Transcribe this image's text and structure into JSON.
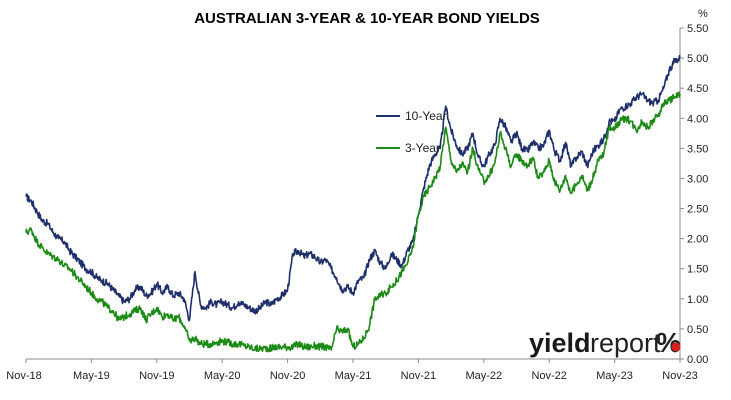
{
  "chart_data": {
    "type": "line",
    "title": "AUSTRALIAN 3-YEAR & 10-YEAR BOND YIELDS",
    "y_unit": "%",
    "xlabel": "",
    "ylabel": "",
    "ylim": [
      0,
      5.5
    ],
    "y_ticks": [
      "0.00",
      "0.50",
      "1.00",
      "1.50",
      "2.00",
      "2.50",
      "3.00",
      "3.50",
      "4.00",
      "4.50",
      "5.00",
      "5.50"
    ],
    "x_ticks": [
      "Nov-18",
      "May-19",
      "Nov-19",
      "May-20",
      "Nov-20",
      "May-21",
      "Nov-21",
      "May-22",
      "Nov-22",
      "May-23",
      "Nov-23"
    ],
    "x_range_months": [
      0,
      60
    ],
    "grid": false,
    "legend_position": "center",
    "series": [
      {
        "name": "10-Year",
        "color": "#1f2f6b",
        "x": [
          0,
          0.5,
          1,
          1.5,
          2,
          2.5,
          3,
          3.5,
          4,
          4.5,
          5,
          5.5,
          6,
          6.5,
          7,
          7.5,
          8,
          8.5,
          9,
          9.5,
          10,
          10.5,
          11,
          11.5,
          12,
          12.5,
          13,
          13.5,
          14,
          14.5,
          15,
          15.5,
          16,
          16.5,
          17,
          17.5,
          18,
          18.5,
          19,
          19.5,
          20,
          20.5,
          21,
          21.5,
          22,
          22.5,
          23,
          23.5,
          24,
          24.5,
          25,
          25.5,
          26,
          26.5,
          27,
          27.5,
          28,
          28.5,
          29,
          29.5,
          30,
          30.5,
          31,
          31.5,
          32,
          32.5,
          33,
          33.5,
          34,
          34.5,
          35,
          35.5,
          36,
          36.5,
          37,
          37.5,
          38,
          38.5,
          39,
          39.5,
          40,
          40.5,
          41,
          41.5,
          42,
          42.5,
          43,
          43.5,
          44,
          44.5,
          45,
          45.5,
          46,
          46.5,
          47,
          47.5,
          48,
          48.5,
          49,
          49.5,
          50,
          50.5,
          51,
          51.5,
          52,
          52.5,
          53,
          53.5,
          54,
          54.5,
          55,
          55.5,
          56,
          56.5,
          57,
          57.5,
          58,
          58.5,
          59,
          59.5,
          60
        ],
        "values": [
          2.7,
          2.62,
          2.45,
          2.3,
          2.25,
          2.1,
          2.0,
          1.95,
          1.8,
          1.7,
          1.6,
          1.5,
          1.45,
          1.35,
          1.3,
          1.25,
          1.15,
          1.05,
          0.95,
          1.0,
          1.15,
          1.2,
          1.05,
          1.1,
          1.25,
          1.1,
          1.2,
          1.05,
          1.1,
          1.0,
          0.65,
          1.45,
          0.9,
          0.85,
          0.95,
          0.9,
          0.95,
          0.9,
          0.85,
          0.95,
          0.9,
          0.85,
          0.8,
          0.85,
          0.95,
          0.9,
          1.0,
          1.05,
          1.15,
          1.75,
          1.8,
          1.7,
          1.75,
          1.7,
          1.6,
          1.65,
          1.5,
          1.35,
          1.15,
          1.2,
          1.1,
          1.3,
          1.35,
          1.65,
          1.8,
          1.6,
          1.5,
          1.75,
          1.65,
          1.55,
          1.8,
          1.95,
          2.4,
          2.85,
          3.2,
          3.4,
          3.5,
          4.2,
          3.8,
          3.55,
          3.4,
          3.5,
          3.75,
          3.35,
          3.2,
          3.4,
          3.55,
          4.0,
          3.85,
          3.6,
          3.75,
          3.5,
          3.45,
          3.6,
          3.5,
          3.55,
          3.8,
          3.45,
          3.3,
          3.6,
          3.2,
          3.35,
          3.45,
          3.2,
          3.45,
          3.55,
          3.65,
          3.95,
          3.95,
          4.15,
          4.2,
          4.25,
          4.35,
          4.4,
          4.3,
          4.25,
          4.3,
          4.5,
          4.8,
          4.95,
          5.0
        ]
      },
      {
        "name": "3-Year",
        "color": "#1c8a15",
        "x": [
          0,
          0.5,
          1,
          1.5,
          2,
          2.5,
          3,
          3.5,
          4,
          4.5,
          5,
          5.5,
          6,
          6.5,
          7,
          7.5,
          8,
          8.5,
          9,
          9.5,
          10,
          10.5,
          11,
          11.5,
          12,
          12.5,
          13,
          13.5,
          14,
          14.5,
          15,
          15.5,
          16,
          16.5,
          17,
          17.5,
          18,
          18.5,
          19,
          19.5,
          20,
          20.5,
          21,
          21.5,
          22,
          22.5,
          23,
          23.5,
          24,
          24.5,
          25,
          25.5,
          26,
          26.5,
          27,
          27.5,
          28,
          28.5,
          29,
          29.5,
          30,
          30.5,
          31,
          31.5,
          32,
          32.5,
          33,
          33.5,
          34,
          34.5,
          35,
          35.5,
          36,
          36.5,
          37,
          37.5,
          38,
          38.5,
          39,
          39.5,
          40,
          40.5,
          41,
          41.5,
          42,
          42.5,
          43,
          43.5,
          44,
          44.5,
          45,
          45.5,
          46,
          46.5,
          47,
          47.5,
          48,
          48.5,
          49,
          49.5,
          50,
          50.5,
          51,
          51.5,
          52,
          52.5,
          53,
          53.5,
          54,
          54.5,
          55,
          55.5,
          56,
          56.5,
          57,
          57.5,
          58,
          58.5,
          59,
          59.5,
          60
        ],
        "values": [
          2.1,
          2.15,
          1.95,
          1.85,
          1.75,
          1.7,
          1.65,
          1.55,
          1.5,
          1.4,
          1.3,
          1.2,
          1.1,
          1.0,
          0.95,
          0.85,
          0.8,
          0.65,
          0.7,
          0.75,
          0.8,
          0.85,
          0.65,
          0.75,
          0.85,
          0.7,
          0.75,
          0.65,
          0.7,
          0.55,
          0.3,
          0.35,
          0.25,
          0.25,
          0.25,
          0.28,
          0.3,
          0.28,
          0.25,
          0.25,
          0.22,
          0.2,
          0.17,
          0.17,
          0.18,
          0.18,
          0.2,
          0.2,
          0.2,
          0.2,
          0.25,
          0.2,
          0.2,
          0.22,
          0.2,
          0.2,
          0.15,
          0.5,
          0.45,
          0.5,
          0.2,
          0.25,
          0.35,
          0.55,
          1.0,
          1.05,
          1.1,
          1.2,
          1.3,
          1.45,
          1.6,
          1.85,
          2.4,
          2.7,
          2.85,
          3.0,
          3.2,
          3.85,
          3.3,
          3.1,
          3.25,
          3.1,
          3.5,
          3.15,
          2.95,
          3.05,
          3.25,
          3.75,
          3.5,
          3.2,
          3.4,
          3.3,
          3.2,
          3.35,
          3.0,
          3.1,
          3.3,
          2.95,
          2.8,
          3.05,
          2.75,
          2.9,
          3.05,
          2.8,
          3.0,
          3.3,
          3.4,
          3.85,
          3.85,
          3.95,
          4.0,
          3.95,
          3.8,
          3.95,
          3.85,
          3.95,
          4.05,
          4.25,
          4.3,
          4.35,
          4.4
        ]
      }
    ]
  },
  "brand": {
    "part1": "yield",
    "part2": "report",
    "part3": "%"
  }
}
